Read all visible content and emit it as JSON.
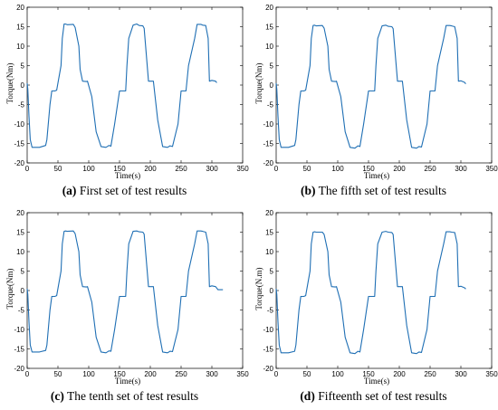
{
  "colors": {
    "series": "#1f6fb4",
    "axis": "#000000",
    "background": "#ffffff"
  },
  "chart_data": [
    {
      "type": "line",
      "caption_label": "(a)",
      "caption_text": " First set of test results",
      "xlabel": "Time(s)",
      "ylabel": "Torque(Nm)",
      "xlim": [
        0,
        350
      ],
      "ylim": [
        -20,
        20
      ],
      "xticks": [
        "0",
        "50",
        "100",
        "150",
        "200",
        "250",
        "300",
        "350"
      ],
      "yticks": [
        "-20",
        "-15",
        "-10",
        "-5",
        "0",
        "5",
        "10",
        "15",
        "20"
      ],
      "grid": false,
      "x": [
        0,
        1,
        3,
        5,
        8,
        10,
        20,
        30,
        32,
        37,
        40,
        45,
        48,
        55,
        57,
        60,
        62,
        65,
        75,
        78,
        84,
        86,
        90,
        96,
        98,
        105,
        112,
        120,
        128,
        133,
        136,
        142,
        150,
        155,
        160,
        162,
        165,
        172,
        178,
        182,
        188,
        190,
        197,
        205,
        212,
        220,
        228,
        232,
        236,
        245,
        250,
        255,
        258,
        262,
        272,
        276,
        282,
        285,
        290,
        294,
        296,
        300,
        306,
        308
      ],
      "y": [
        0.5,
        -1,
        -8,
        -14,
        -16,
        -16,
        -16,
        -15.5,
        -14,
        -5,
        -1.5,
        -1.5,
        -1.3,
        5,
        12,
        15.7,
        15.7,
        15.5,
        15.6,
        14.8,
        10,
        4,
        1,
        0.9,
        1,
        -3,
        -12,
        -15.8,
        -16,
        -15.5,
        -15.7,
        -10,
        -1.5,
        -1.5,
        -1.5,
        5,
        12,
        15.4,
        15.7,
        15.3,
        15.2,
        14.6,
        1,
        1,
        -9,
        -15.8,
        -16,
        -15.6,
        -15.8,
        -10,
        -1.5,
        -1.5,
        -1.5,
        5,
        12,
        15.6,
        15.6,
        15.4,
        15.3,
        12,
        1,
        1.2,
        1,
        0.6
      ]
    },
    {
      "type": "line",
      "caption_label": "(b)",
      "caption_text": " The fifth set of test results",
      "xlabel": "Time(s)",
      "ylabel": "Torque(Nm)",
      "xlim": [
        0,
        350
      ],
      "ylim": [
        -20,
        20
      ],
      "xticks": [
        "0",
        "50",
        "100",
        "150",
        "200",
        "250",
        "300",
        "350"
      ],
      "yticks": [
        "-20",
        "-15",
        "-10",
        "-5",
        "0",
        "5",
        "10",
        "15",
        "20"
      ],
      "grid": false,
      "x": [
        0,
        1,
        3,
        5,
        8,
        10,
        20,
        30,
        32,
        37,
        40,
        45,
        48,
        55,
        57,
        60,
        62,
        65,
        75,
        78,
        84,
        86,
        90,
        96,
        98,
        105,
        112,
        120,
        128,
        133,
        136,
        142,
        150,
        155,
        160,
        162,
        165,
        172,
        178,
        182,
        188,
        190,
        197,
        205,
        212,
        220,
        228,
        232,
        236,
        245,
        250,
        255,
        258,
        262,
        272,
        276,
        282,
        285,
        290,
        294,
        296,
        300,
        306,
        308
      ],
      "y": [
        0.5,
        -1,
        -8,
        -14,
        -16,
        -16,
        -16,
        -15.5,
        -14,
        -5,
        -1.5,
        -1.5,
        -1.3,
        5,
        12,
        15.3,
        15.4,
        15.2,
        15.3,
        14.6,
        10,
        4,
        1,
        0.9,
        1,
        -3,
        -12,
        -16,
        -16.2,
        -15.6,
        -15.8,
        -10,
        -1.5,
        -1.5,
        -1.5,
        5,
        12,
        15.2,
        15.4,
        15.1,
        15.0,
        14.5,
        1,
        1,
        -9,
        -16,
        -16.2,
        -15.8,
        -15.9,
        -10,
        -1.5,
        -1.5,
        -1.5,
        5,
        12,
        15.3,
        15.3,
        15.2,
        15.0,
        12,
        1,
        1.1,
        0.7,
        0.3
      ]
    },
    {
      "type": "line",
      "caption_label": "(c)",
      "caption_text": " The tenth set of test results",
      "xlabel": "Time(s)",
      "ylabel": "Torque(Nm)",
      "xlim": [
        0,
        350
      ],
      "ylim": [
        -20,
        20
      ],
      "xticks": [
        "0",
        "50",
        "100",
        "150",
        "200",
        "250",
        "300",
        "350"
      ],
      "yticks": [
        "-20",
        "-15",
        "-10",
        "-5",
        "0",
        "5",
        "10",
        "15",
        "20"
      ],
      "grid": false,
      "x": [
        0,
        1,
        3,
        5,
        8,
        10,
        20,
        30,
        32,
        37,
        40,
        45,
        48,
        55,
        57,
        60,
        62,
        65,
        75,
        78,
        84,
        86,
        90,
        96,
        98,
        105,
        112,
        120,
        128,
        133,
        136,
        142,
        150,
        155,
        160,
        162,
        165,
        172,
        178,
        182,
        188,
        190,
        197,
        205,
        212,
        220,
        228,
        232,
        236,
        245,
        250,
        255,
        258,
        262,
        272,
        276,
        282,
        285,
        290,
        294,
        296,
        300,
        306,
        310,
        318
      ],
      "y": [
        0.5,
        -1,
        -8,
        -14,
        -15.8,
        -15.8,
        -15.8,
        -15.4,
        -14,
        -5,
        -1.5,
        -1.5,
        -1.3,
        5,
        12,
        15.2,
        15.3,
        15.2,
        15.3,
        14.6,
        10,
        4,
        1,
        0.9,
        1,
        -3,
        -12,
        -15.8,
        -16,
        -15.5,
        -15.6,
        -10,
        -1.5,
        -1.5,
        -1.5,
        5,
        12,
        15.2,
        15.3,
        15.1,
        15.0,
        14.5,
        1,
        1,
        -9,
        -15.8,
        -16,
        -15.6,
        -15.7,
        -10,
        -1.5,
        -1.5,
        -1.5,
        5,
        12,
        15.3,
        15.3,
        15.2,
        15.0,
        12,
        1,
        1.2,
        1,
        0.2,
        0.2
      ]
    },
    {
      "type": "line",
      "caption_label": "(d)",
      "caption_text": " Fifteenth set of test results",
      "xlabel": "Time(s)",
      "ylabel": "Torque(N.m)",
      "xlim": [
        0,
        350
      ],
      "ylim": [
        -20,
        20
      ],
      "xticks": [
        "0",
        "50",
        "100",
        "150",
        "200",
        "250",
        "300",
        "350"
      ],
      "yticks": [
        "-20",
        "-15",
        "-10",
        "-5",
        "0",
        "5",
        "10",
        "15",
        "20"
      ],
      "grid": false,
      "x": [
        0,
        1,
        3,
        5,
        8,
        10,
        20,
        30,
        32,
        37,
        40,
        45,
        48,
        55,
        57,
        60,
        62,
        65,
        75,
        78,
        84,
        86,
        90,
        96,
        98,
        105,
        112,
        120,
        128,
        133,
        136,
        142,
        150,
        155,
        160,
        162,
        165,
        172,
        178,
        182,
        188,
        190,
        197,
        205,
        212,
        220,
        228,
        232,
        236,
        245,
        250,
        255,
        258,
        262,
        272,
        276,
        282,
        285,
        290,
        294,
        296,
        300,
        306,
        308
      ],
      "y": [
        0.5,
        -1,
        -8,
        -14,
        -16,
        -16,
        -16,
        -15.6,
        -14,
        -5,
        -1.5,
        -1.5,
        -1.3,
        5,
        12,
        15.0,
        15.1,
        15.0,
        15.0,
        14.4,
        10,
        4,
        1,
        0.9,
        1,
        -3,
        -12,
        -16,
        -16.2,
        -15.6,
        -15.8,
        -10,
        -1.5,
        -1.5,
        -1.5,
        5,
        12,
        15.0,
        15.2,
        15.0,
        14.9,
        14.4,
        1,
        1,
        -9,
        -16,
        -16.2,
        -15.8,
        -15.9,
        -10,
        -1.5,
        -1.5,
        -1.5,
        5,
        12,
        15.1,
        15.1,
        15.0,
        14.9,
        12,
        1,
        1.1,
        0.7,
        0.4
      ]
    }
  ]
}
